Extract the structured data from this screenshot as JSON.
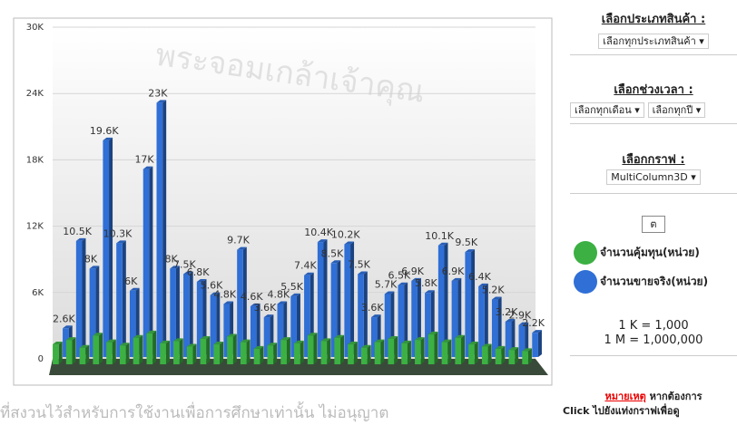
{
  "chart_data": {
    "type": "bar3d",
    "yticks": [
      {
        "value": 0,
        "label": "0"
      },
      {
        "value": 6000,
        "label": "6K"
      },
      {
        "value": 12000,
        "label": "12K"
      },
      {
        "value": 18000,
        "label": "18K"
      },
      {
        "value": 24000,
        "label": "24K"
      },
      {
        "value": 30000,
        "label": "30K"
      }
    ],
    "ylim": [
      0,
      30000
    ],
    "grid": true,
    "categories": [
      null,
      null,
      null,
      null,
      null,
      null,
      null,
      null,
      null,
      null,
      null,
      null,
      null,
      null,
      null,
      null,
      null,
      null,
      null,
      null,
      null,
      null,
      null,
      null,
      null,
      null,
      null,
      null,
      null,
      null,
      null,
      null,
      null,
      null,
      null,
      null
    ],
    "series": [
      {
        "name": "จำนวนคุ้มทุน(หน่วย)",
        "color": "#3cb043",
        "values": [
          1800,
          2200,
          1500,
          2600,
          2000,
          1700,
          2400,
          2800,
          1900,
          2100,
          1600,
          2300,
          1800,
          2500,
          2000,
          1400,
          1700,
          2200,
          1900,
          2600,
          2100,
          2400,
          1800,
          1500,
          2000,
          2300,
          1900,
          2200,
          2700,
          2000,
          2400,
          1800,
          1600,
          1400,
          1300,
          1200
        ]
      },
      {
        "name": "จำนวนขายจริง(หน่วย)",
        "color": "#2f6fd6",
        "values": [
          2600,
          10500,
          8000,
          19600,
          10300,
          6000,
          17000,
          23000,
          8000,
          7500,
          6800,
          5600,
          4800,
          9700,
          4600,
          3600,
          4800,
          5500,
          7400,
          10400,
          8500,
          10200,
          7500,
          3600,
          5700,
          6500,
          6900,
          5800,
          10100,
          6900,
          9500,
          6400,
          5200,
          3200,
          2900,
          2200
        ],
        "value_labels": [
          "2.6K",
          "10.5K",
          "8K",
          "19.6K",
          "10.3K",
          "6K",
          "17K",
          "23K",
          "8K",
          "7.5K",
          "6.8K",
          "5.6K",
          "4.8K",
          "9.7K",
          "4.6K",
          "3.6K",
          "4.8K",
          "5.5K",
          "7.4K",
          "10.4K",
          "8.5K",
          "10.2K",
          "7.5K",
          "3.6K",
          "5.7K",
          "6.5K",
          "6.9K",
          "5.8K",
          "10.1K",
          "6.9K",
          "9.5K",
          "6.4K",
          "5.2K",
          "3.2K",
          "2.9K",
          "2.2K"
        ]
      }
    ]
  },
  "panel": {
    "product_label": "เลือกประเภทสินค้า :",
    "product_select": "เลือกทุกประเภทสินค้า ▾",
    "period_label": "เลือกช่วงเวลา :",
    "month_select": "เลือกทุกเดือน ▾",
    "year_select": "เลือกทุกปี ▾",
    "graph_label": "เลือกกราฟ :",
    "graph_select": "MultiColumn3D ▾",
    "submit": "ต",
    "unit_k": "1 K = 1,000",
    "unit_m": "1 M = 1,000,000",
    "note_label": "หมายเหตุ",
    "note_text": "หากต้องการ",
    "note_click": "Click ไปยังแท่งกราฟเพื่อดู"
  },
  "watermark": {
    "seal": "พระจอมเกล้าเจ้าคุณ",
    "footer": "ที่สงวนไว้สำหรับการใช้งานเพื่อการศึกษาเท่านั้น ไม่อนุญาต"
  }
}
